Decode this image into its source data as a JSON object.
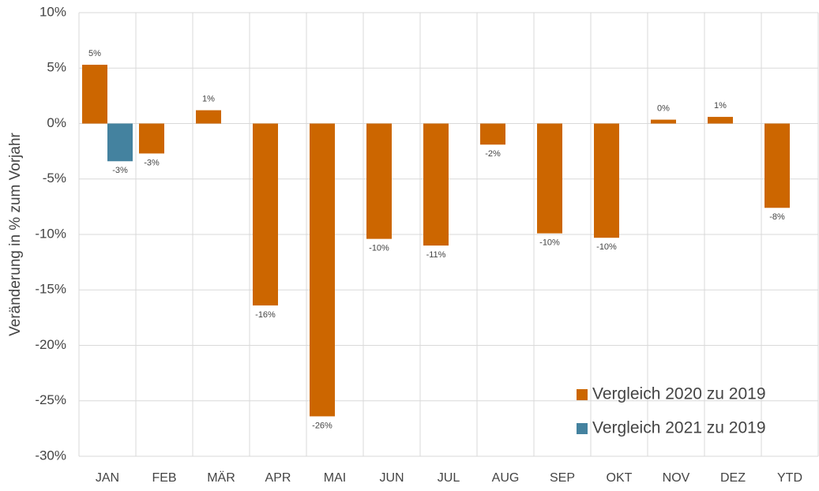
{
  "chart_data": {
    "type": "bar",
    "y_label": "Veränderung in % zum Vorjahr",
    "categories": [
      "JAN",
      "FEB",
      "MÄR",
      "APR",
      "MAI",
      "JUN",
      "JUL",
      "AUG",
      "SEP",
      "OKT",
      "NOV",
      "DEZ",
      "YTD"
    ],
    "series": [
      {
        "name": "Vergleich 2020 zu 2019",
        "color": "#cc6600",
        "values": [
          5.3,
          -2.7,
          1.2,
          -16.4,
          -26.4,
          -10.4,
          -11.0,
          -1.9,
          -9.9,
          -10.3,
          0.35,
          0.6,
          -7.6
        ],
        "value_labels": [
          "5%",
          "-3%",
          "1%",
          "-16%",
          "-26%",
          "-10%",
          "-11%",
          "-2%",
          "-10%",
          "-10%",
          "0%",
          "1%",
          "-8%"
        ]
      },
      {
        "name": "Vergleich 2021 zu 2019",
        "color": "#44829f",
        "values": [
          -3.4,
          null,
          null,
          null,
          null,
          null,
          null,
          null,
          null,
          null,
          null,
          null,
          null
        ],
        "value_labels": [
          "-3%",
          null,
          null,
          null,
          null,
          null,
          null,
          null,
          null,
          null,
          null,
          null,
          null
        ]
      }
    ],
    "ylim": [
      -30,
      10
    ],
    "yticks": [
      {
        "value": -30,
        "label": "-30%"
      },
      {
        "value": -25,
        "label": "-25%"
      },
      {
        "value": -20,
        "label": "-20%"
      },
      {
        "value": -15,
        "label": "-15%"
      },
      {
        "value": -10,
        "label": "-10%"
      },
      {
        "value": -5,
        "label": "-5%"
      },
      {
        "value": 0,
        "label": "0%"
      },
      {
        "value": 5,
        "label": "5%"
      },
      {
        "value": 10,
        "label": "10%"
      }
    ],
    "grid": true,
    "legend": "lower right"
  }
}
